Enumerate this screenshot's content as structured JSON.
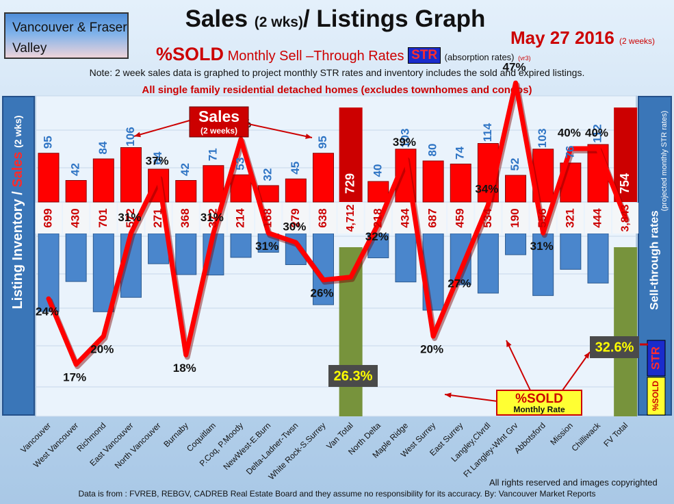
{
  "header": {
    "region": "Vancouver & Fraser Valley",
    "title_main": "Sales",
    "title_small": "(2 wks)",
    "title_rest": "/ Listings Graph",
    "date": "May 27 2016",
    "date_note": "(2 weeks)",
    "subtitle_pct": "%SOLD",
    "subtitle_text": "Monthly Sell –Through Rates",
    "subtitle_str": "STR",
    "subtitle_note": "(absorption rates)",
    "subtitle_ver": "(vr3)",
    "note": "Note: 2 week sales data is graphed to project monthly STR rates and inventory includes the sold and expired listings.",
    "note2": "All single family residential detached homes (excludes townhomes and condos)"
  },
  "footer": {
    "rights": "All rights reserved and  images copyrighted",
    "source": "Data is from : FVREB, REBGV, CADREB Real Estate Board and they assume no responsibility for its accuracy. By: Vancouver Market Reports"
  },
  "colors": {
    "sales_bar": "#ff0000",
    "listing_bar": "#4a86cc",
    "total_sales_bar": "#cc0000",
    "total_listing_bar": "#77933c",
    "str_line": "#ff0000",
    "label_sales": "#2e74c4",
    "label_listing": "#cc0000"
  },
  "chart_data": {
    "type": "bar",
    "title": "Sales (2 wks)/ Listings Graph",
    "categories": [
      "Vancouver",
      "West Vancouver",
      "Richmond",
      "East Vancouver",
      "North Vancouver",
      "Burnaby",
      "Coquitlam",
      "P.Coq, P.Moody",
      "NewWest-E.Burn",
      "Delta-Ladner-Twsn",
      "White Rock-S.Surrey",
      "Van Total",
      "North Delta",
      "Maple Ridge",
      "West Surrey",
      "East Surrey",
      "Langley,Clvrdl",
      "Ft Langley-Wlnt Grv",
      "Abbotsford",
      "Mission",
      "Chilliwack",
      "FV Total"
    ],
    "y_left_label_top": "Sales",
    "y_left_label_top_small": "(2 wks)",
    "y_left_label_bottom": "Listing Inventory /",
    "y_right_label": "Sell-through rates",
    "y_right_label_small": "(projected monthly STR rates)",
    "series": [
      {
        "name": "Sales",
        "annotation": "(2 weeks)",
        "values": [
          95,
          42,
          84,
          106,
          64,
          42,
          71,
          53,
          32,
          45,
          95,
          729,
          40,
          103,
          80,
          74,
          114,
          52,
          103,
          76,
          112,
          754
        ]
      },
      {
        "name": "Listing Inventory",
        "labels": [
          "699",
          "430",
          "701",
          "572",
          "271",
          "368",
          "372",
          "214",
          "168",
          "279",
          "638",
          "4,712",
          "218",
          "434",
          "687",
          "459",
          "534",
          "190",
          "556",
          "321",
          "444",
          "3,843"
        ],
        "values": [
          699,
          430,
          701,
          572,
          271,
          368,
          372,
          214,
          168,
          279,
          638,
          4712,
          218,
          434,
          687,
          459,
          534,
          190,
          556,
          321,
          444,
          3843
        ]
      },
      {
        "name": "%SOLD",
        "annotation": "Monthly Rate",
        "labels": [
          "24%",
          "17%",
          "20%",
          "31%",
          "37%",
          "18%",
          "31%",
          "41%",
          "31%",
          "30%",
          "26%",
          "26.3%",
          "32%",
          "39%",
          "20%",
          "27%",
          "34%",
          "47%",
          "31%",
          "40%",
          "40%",
          "32.6%"
        ],
        "values": [
          24,
          17,
          20,
          31,
          37,
          18,
          31,
          41,
          31,
          30,
          26,
          26.3,
          32,
          39,
          20,
          27,
          34,
          47,
          31,
          40,
          40,
          32.6
        ]
      }
    ],
    "totals_label_sales": [
      "729",
      "754"
    ],
    "str_badge": "STR",
    "str_badge_pct": "%SOLD"
  }
}
